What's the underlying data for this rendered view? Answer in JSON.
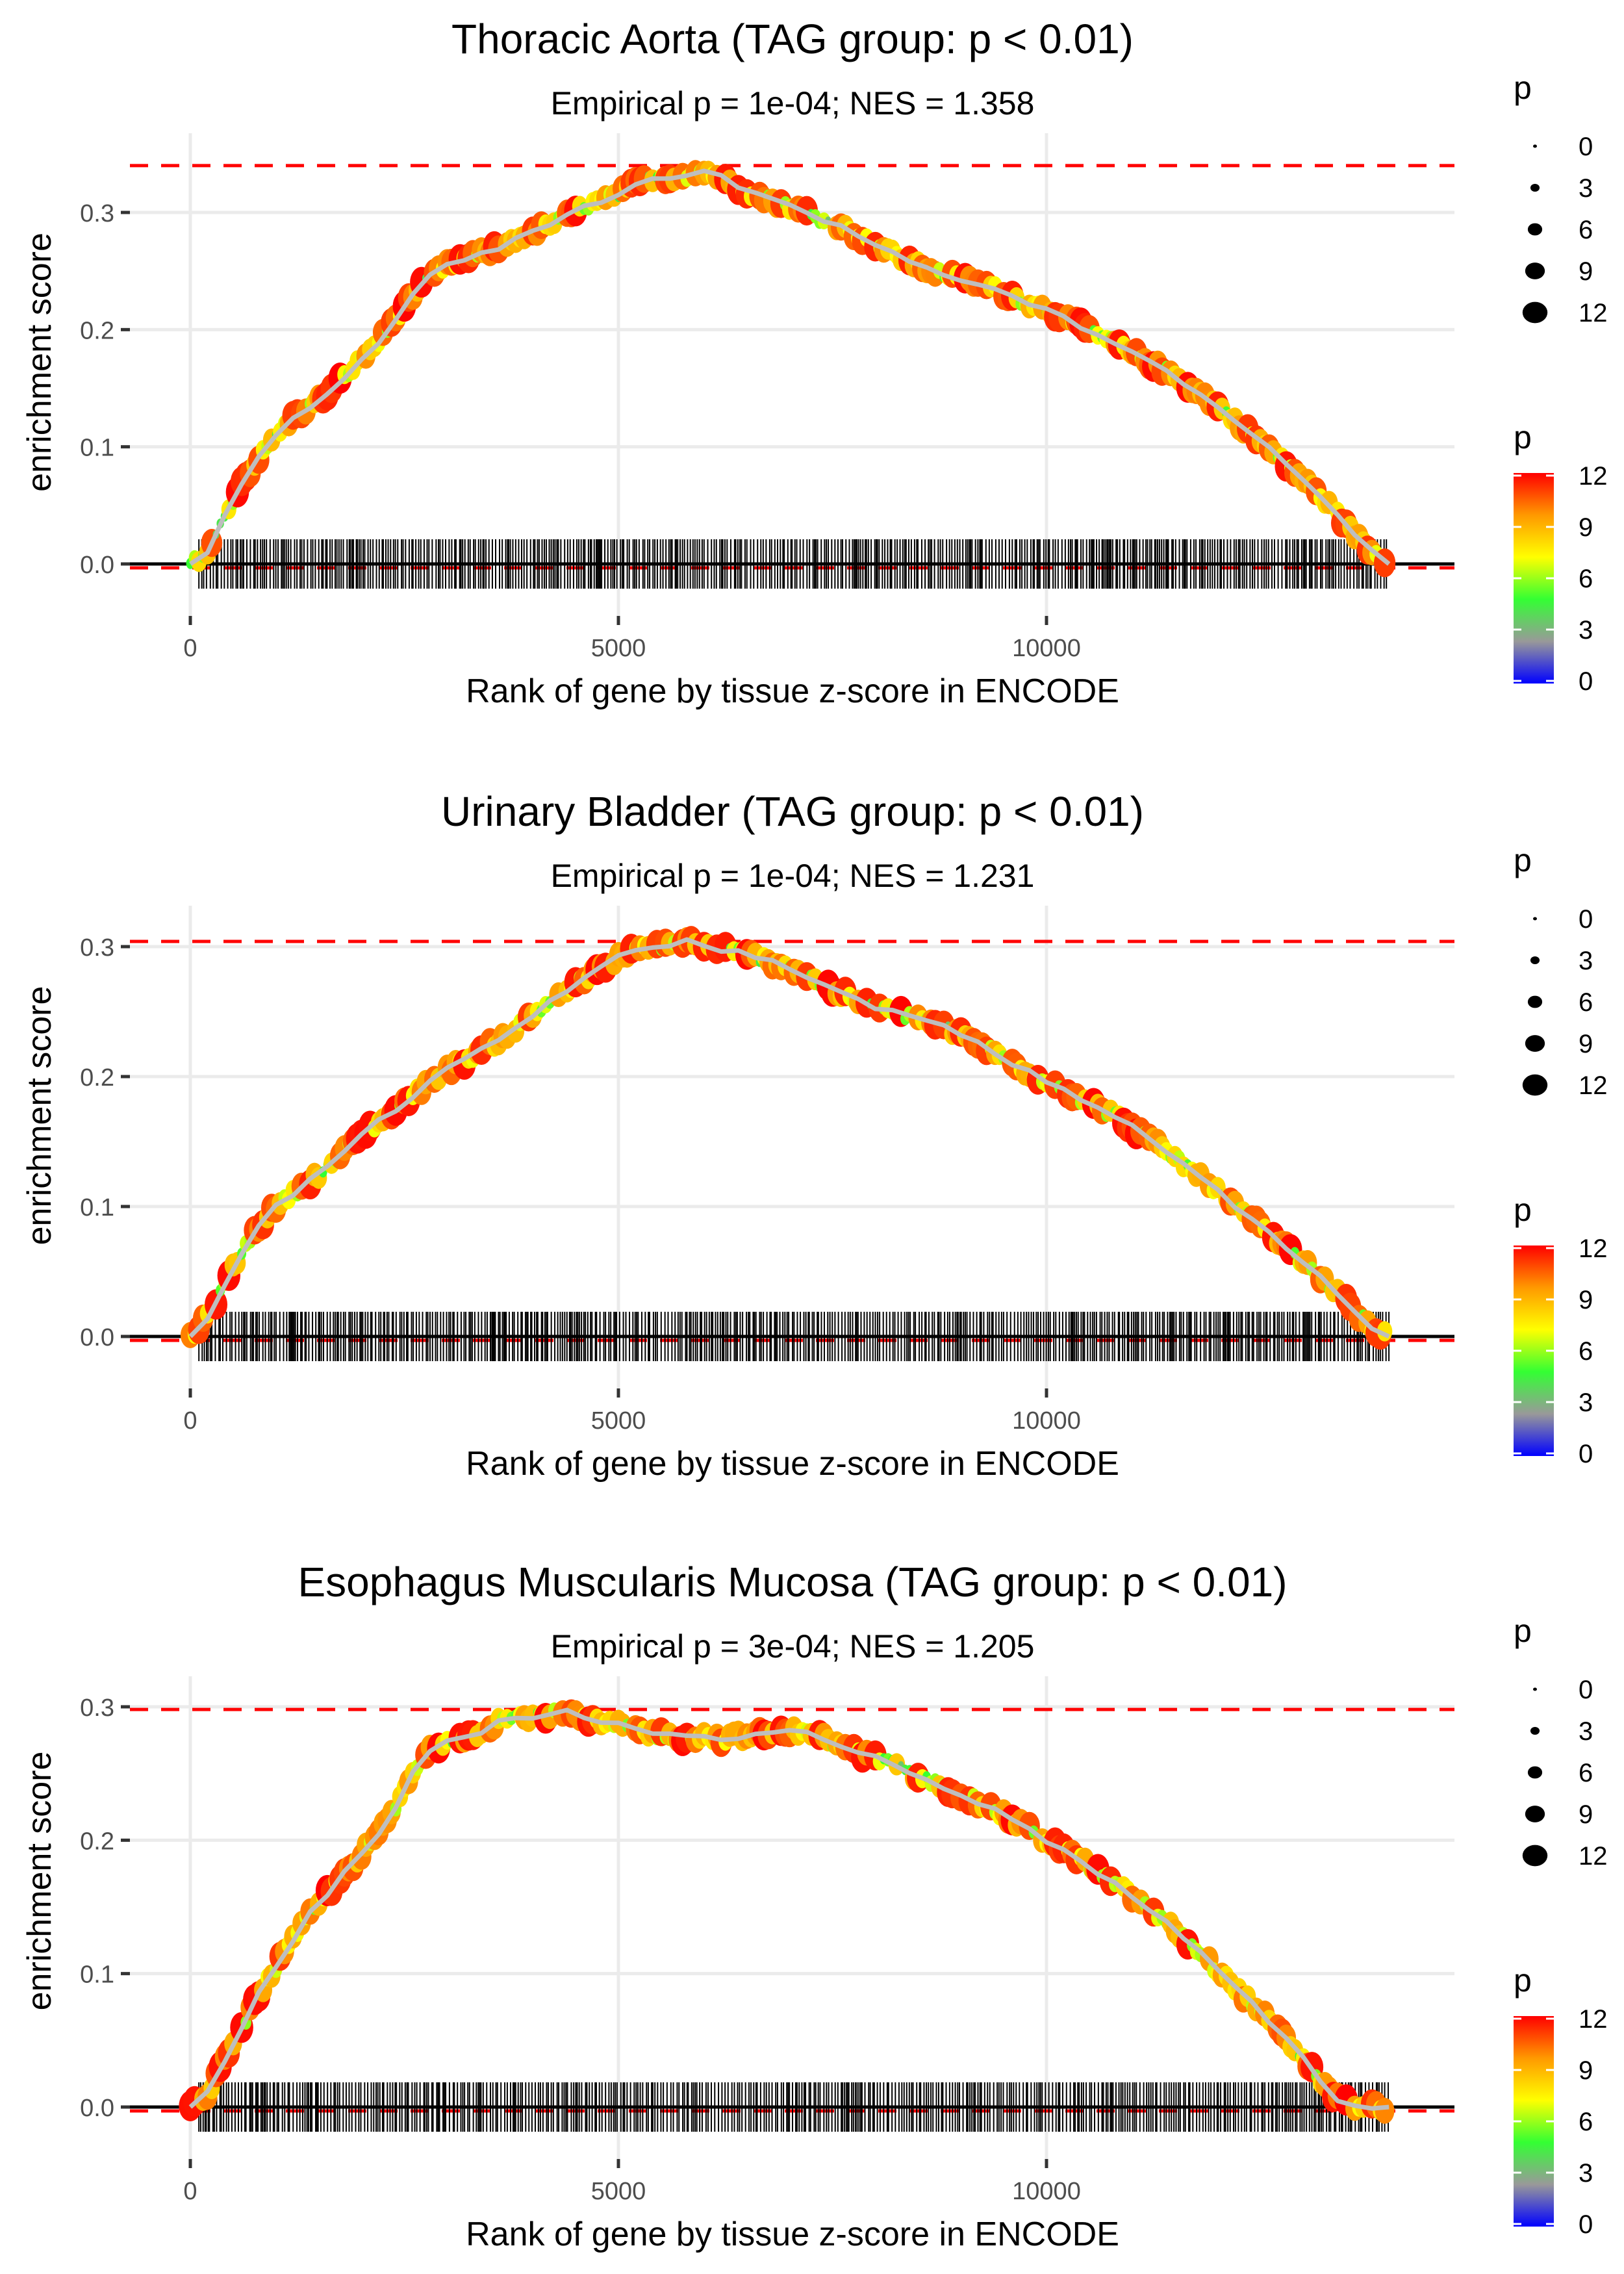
{
  "chart_data": [
    {
      "type": "line",
      "title": "Thoracic Aorta (TAG group: p < 0.01)",
      "subtitle": "Empirical p = 1e-04; NES = 1.358",
      "xlabel": "Rank of gene by tissue z-score in ENCODE",
      "ylabel": "enrichment score",
      "xticks": [
        0,
        5000,
        10000
      ],
      "xtick_labels": [
        "0",
        "5000",
        "10000"
      ],
      "yticks": [
        0.0,
        0.1,
        0.2,
        0.3
      ],
      "ytick_labels": [
        "0.0",
        "0.1",
        "0.2",
        "0.3"
      ],
      "xlim": [
        -650,
        14750
      ],
      "ylim": [
        -0.02,
        0.35
      ],
      "max_es_line": 0.34,
      "min_es_line": -0.001,
      "gene_rank_range": [
        100,
        14000
      ],
      "grid": true,
      "series": [
        {
          "name": "running enrichment score",
          "x": [
            0,
            200,
            400,
            600,
            800,
            1000,
            1200,
            1400,
            1600,
            1800,
            2000,
            2200,
            2400,
            2600,
            2800,
            3000,
            3200,
            3400,
            3600,
            3800,
            4000,
            4200,
            4400,
            4600,
            4800,
            5000,
            5200,
            5400,
            5600,
            5800,
            6000,
            6200,
            6400,
            6600,
            6800,
            7000,
            7200,
            7400,
            7600,
            7800,
            8000,
            8200,
            8400,
            8600,
            8800,
            9000,
            9200,
            9400,
            9600,
            9800,
            10000,
            10200,
            10400,
            10600,
            10800,
            11000,
            11200,
            11400,
            11600,
            11800,
            12000,
            12200,
            12400,
            12600,
            12800,
            13000,
            13200,
            13400,
            13600,
            13800,
            14000
          ],
          "y": [
            0.0,
            0.01,
            0.04,
            0.07,
            0.09,
            0.11,
            0.125,
            0.135,
            0.145,
            0.16,
            0.175,
            0.19,
            0.21,
            0.23,
            0.245,
            0.255,
            0.26,
            0.265,
            0.27,
            0.278,
            0.283,
            0.29,
            0.297,
            0.305,
            0.31,
            0.315,
            0.325,
            0.33,
            0.33,
            0.332,
            0.335,
            0.33,
            0.322,
            0.315,
            0.31,
            0.305,
            0.3,
            0.293,
            0.288,
            0.28,
            0.272,
            0.265,
            0.258,
            0.252,
            0.247,
            0.243,
            0.24,
            0.235,
            0.228,
            0.222,
            0.217,
            0.21,
            0.203,
            0.195,
            0.188,
            0.18,
            0.172,
            0.165,
            0.155,
            0.145,
            0.135,
            0.122,
            0.11,
            0.098,
            0.085,
            0.072,
            0.058,
            0.042,
            0.025,
            0.01,
            0.0
          ]
        }
      ]
    },
    {
      "type": "line",
      "title": "Urinary Bladder (TAG group: p < 0.01)",
      "subtitle": "Empirical p = 1e-04; NES = 1.231",
      "xlabel": "Rank of gene by tissue z-score in ENCODE",
      "ylabel": "enrichment score",
      "xticks": [
        0,
        5000,
        10000
      ],
      "xtick_labels": [
        "0",
        "5000",
        "10000"
      ],
      "yticks": [
        0.0,
        0.1,
        0.2,
        0.3
      ],
      "ytick_labels": [
        "0.0",
        "0.1",
        "0.2",
        "0.3"
      ],
      "xlim": [
        -650,
        14750
      ],
      "ylim": [
        -0.02,
        0.32
      ],
      "max_es_line": 0.304,
      "min_es_line": -0.001,
      "gene_rank_range": [
        100,
        14000
      ],
      "grid": true,
      "series": [
        {
          "name": "running enrichment score",
          "x": [
            0,
            200,
            400,
            600,
            800,
            1000,
            1200,
            1400,
            1600,
            1800,
            2000,
            2200,
            2400,
            2600,
            2800,
            3000,
            3200,
            3400,
            3600,
            3800,
            4000,
            4200,
            4400,
            4600,
            4800,
            5000,
            5200,
            5400,
            5600,
            5800,
            6000,
            6200,
            6400,
            6600,
            6800,
            7000,
            7200,
            7400,
            7600,
            7800,
            8000,
            8200,
            8400,
            8600,
            8800,
            9000,
            9200,
            9400,
            9600,
            9800,
            10000,
            10200,
            10400,
            10600,
            10800,
            11000,
            11200,
            11400,
            11600,
            11800,
            12000,
            12200,
            12400,
            12600,
            12800,
            13000,
            13200,
            13400,
            13600,
            13800,
            14000
          ],
          "y": [
            0.0,
            0.015,
            0.04,
            0.065,
            0.085,
            0.1,
            0.11,
            0.12,
            0.13,
            0.143,
            0.155,
            0.165,
            0.175,
            0.185,
            0.197,
            0.205,
            0.212,
            0.22,
            0.228,
            0.237,
            0.247,
            0.258,
            0.267,
            0.275,
            0.283,
            0.292,
            0.297,
            0.3,
            0.302,
            0.304,
            0.3,
            0.298,
            0.296,
            0.292,
            0.288,
            0.284,
            0.278,
            0.27,
            0.264,
            0.258,
            0.254,
            0.25,
            0.246,
            0.243,
            0.238,
            0.232,
            0.225,
            0.218,
            0.21,
            0.203,
            0.197,
            0.19,
            0.183,
            0.176,
            0.17,
            0.161,
            0.152,
            0.142,
            0.133,
            0.122,
            0.112,
            0.1,
            0.09,
            0.079,
            0.068,
            0.057,
            0.045,
            0.033,
            0.02,
            0.006,
            0.0
          ]
        }
      ]
    },
    {
      "type": "line",
      "title": "Esophagus Muscularis Mucosa (TAG group: p < 0.01)",
      "subtitle": "Empirical p = 3e-04; NES = 1.205",
      "xlabel": "Rank of gene by tissue z-score in ENCODE",
      "ylabel": "enrichment score",
      "xticks": [
        0,
        5000,
        10000
      ],
      "xtick_labels": [
        "0",
        "5000",
        "10000"
      ],
      "yticks": [
        0.0,
        0.1,
        0.2,
        0.3
      ],
      "ytick_labels": [
        "0.0",
        "0.1",
        "0.2",
        "0.3"
      ],
      "xlim": [
        -650,
        14750
      ],
      "ylim": [
        -0.02,
        0.31
      ],
      "max_es_line": 0.298,
      "min_es_line": -0.001,
      "gene_rank_range": [
        100,
        14000
      ],
      "grid": true,
      "series": [
        {
          "name": "running enrichment score",
          "x": [
            0,
            200,
            400,
            600,
            800,
            1000,
            1200,
            1400,
            1600,
            1800,
            2000,
            2200,
            2400,
            2600,
            2800,
            3000,
            3200,
            3400,
            3600,
            3800,
            4000,
            4200,
            4400,
            4600,
            4800,
            5000,
            5200,
            5400,
            5600,
            5800,
            6000,
            6200,
            6400,
            6600,
            6800,
            7000,
            7200,
            7400,
            7600,
            7800,
            8000,
            8200,
            8400,
            8600,
            8800,
            9000,
            9200,
            9400,
            9600,
            9800,
            10000,
            10200,
            10400,
            10600,
            10800,
            11000,
            11200,
            11400,
            11600,
            11800,
            12000,
            12200,
            12400,
            12600,
            12800,
            13000,
            13200,
            13400,
            13600,
            13800,
            14000
          ],
          "y": [
            0.0,
            0.01,
            0.035,
            0.06,
            0.085,
            0.105,
            0.125,
            0.145,
            0.16,
            0.175,
            0.19,
            0.205,
            0.225,
            0.25,
            0.268,
            0.275,
            0.278,
            0.282,
            0.29,
            0.292,
            0.293,
            0.294,
            0.296,
            0.29,
            0.288,
            0.286,
            0.283,
            0.28,
            0.278,
            0.277,
            0.278,
            0.276,
            0.278,
            0.279,
            0.28,
            0.281,
            0.283,
            0.276,
            0.27,
            0.265,
            0.262,
            0.257,
            0.25,
            0.245,
            0.24,
            0.235,
            0.228,
            0.222,
            0.215,
            0.208,
            0.2,
            0.193,
            0.185,
            0.176,
            0.167,
            0.158,
            0.148,
            0.138,
            0.127,
            0.115,
            0.102,
            0.09,
            0.077,
            0.064,
            0.05,
            0.036,
            0.02,
            0.006,
            0.0,
            0.0,
            0.0
          ]
        }
      ]
    }
  ],
  "legend": {
    "size_title": "p",
    "size_labels": [
      "0",
      "3",
      "6",
      "9",
      "12"
    ],
    "size_values": [
      0,
      3,
      6,
      9,
      12
    ],
    "color_title": "p",
    "color_labels": [
      "12",
      "9",
      "6",
      "3",
      "0"
    ],
    "color_values": [
      12,
      9,
      6,
      3,
      0
    ],
    "color_scale": [
      "#0000ff",
      "#999999",
      "#33ff33",
      "#ffff00",
      "#ff9900",
      "#ff0000"
    ]
  },
  "colors": {
    "max_line": "#ff0000",
    "running_line": "#bebebe",
    "gridline": "#ebebeb",
    "rug": "#000000"
  }
}
